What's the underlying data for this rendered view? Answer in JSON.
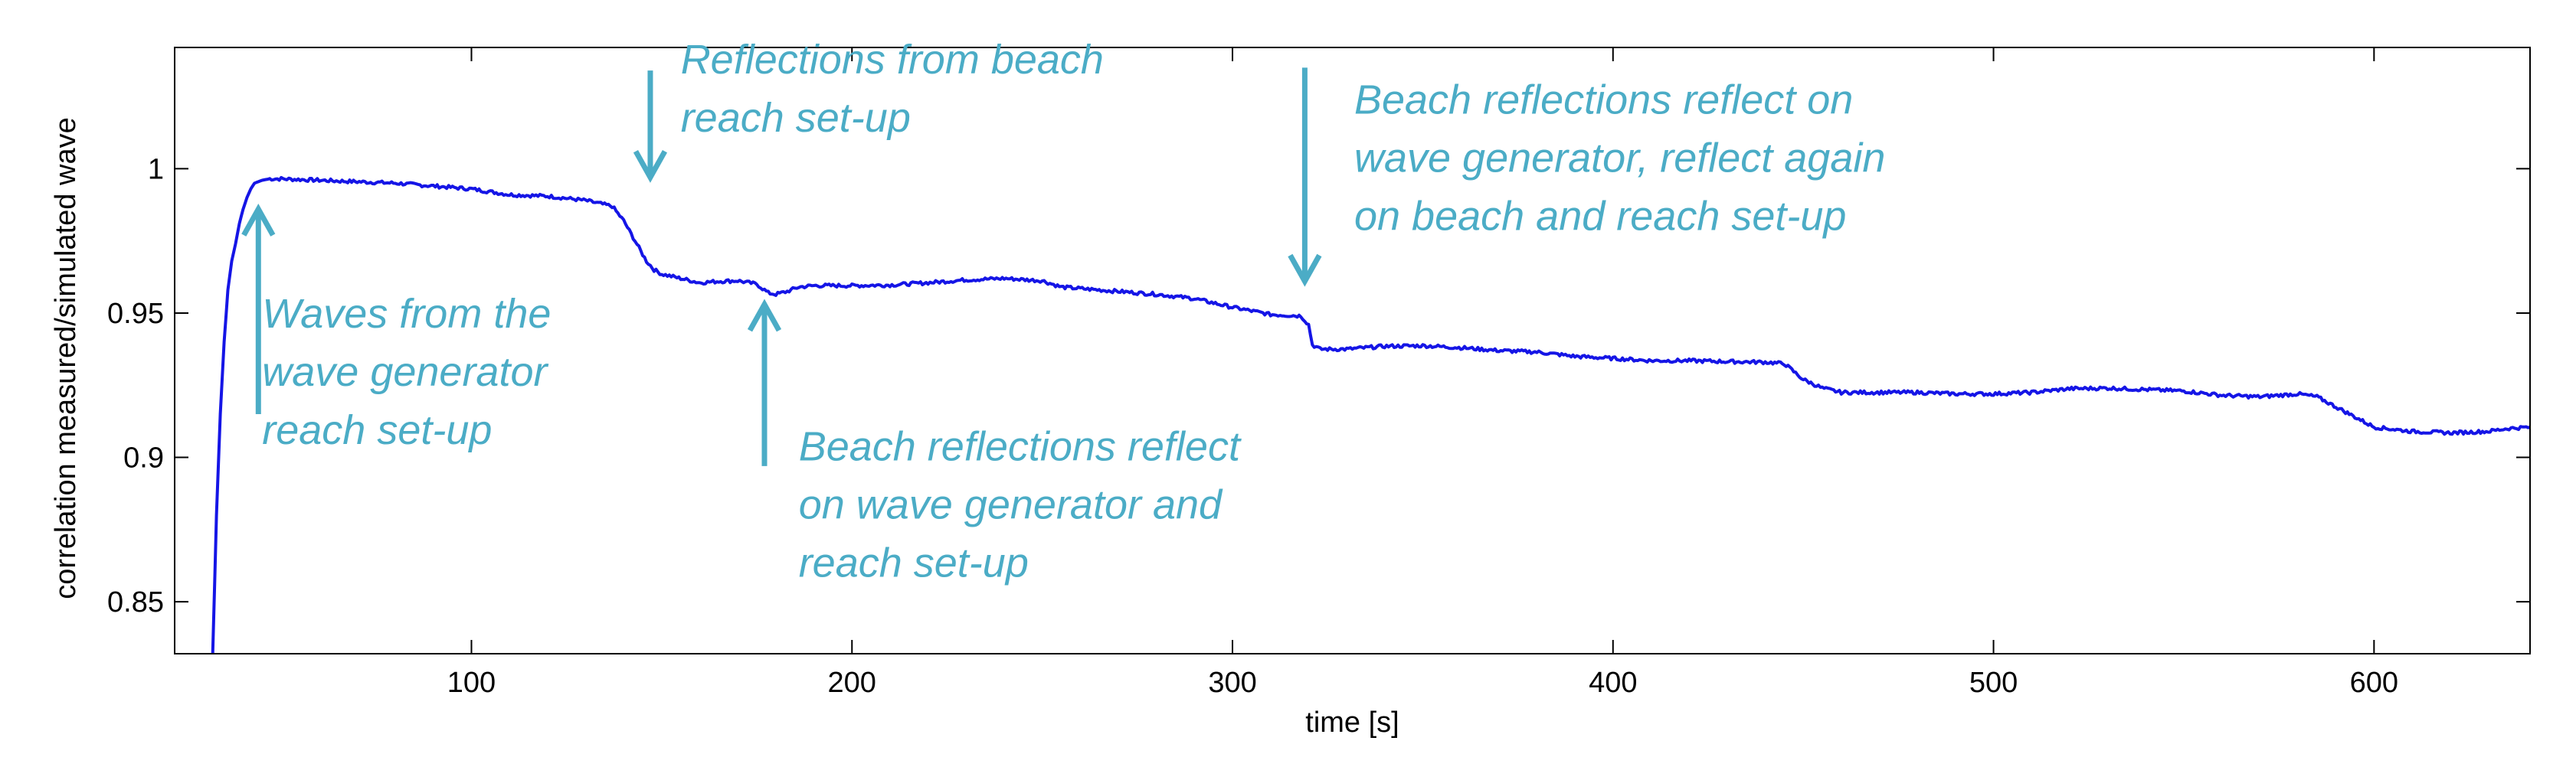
{
  "chart_data": {
    "type": "line",
    "title": "",
    "xlabel": "time [s]",
    "ylabel": "correlation measured/simulated wave",
    "xlim": [
      22,
      641
    ],
    "ylim": [
      0.832,
      1.042
    ],
    "xticks": [
      100,
      200,
      300,
      400,
      500,
      600
    ],
    "xtick_labels": [
      "100",
      "200",
      "300",
      "400",
      "500",
      "600"
    ],
    "yticks": [
      0.85,
      0.9,
      0.95,
      1.0
    ],
    "ytick_labels": [
      "0.85",
      "0.9",
      "0.95",
      "1"
    ],
    "grid": false,
    "series": [
      {
        "name": "correlation",
        "color": "#1515e6",
        "x": [
          32,
          33,
          34,
          35,
          36,
          37,
          38,
          39,
          40,
          41,
          42,
          43,
          44,
          45,
          47,
          50,
          60,
          70,
          80,
          90,
          100,
          110,
          120,
          130,
          137,
          140,
          143,
          146,
          148,
          150,
          155,
          160,
          165,
          170,
          175,
          178,
          180,
          183,
          186,
          190,
          200,
          210,
          220,
          230,
          240,
          250,
          255,
          260,
          270,
          280,
          290,
          300,
          310,
          318,
          320,
          321,
          323,
          330,
          340,
          350,
          360,
          370,
          380,
          390,
          400,
          410,
          420,
          430,
          440,
          445,
          450,
          455,
          460,
          470,
          480,
          490,
          500,
          510,
          520,
          530,
          540,
          550,
          560,
          570,
          580,
          585,
          590,
          595,
          600,
          610,
          620,
          630,
          635,
          641
        ],
        "y": [
          0.832,
          0.88,
          0.915,
          0.94,
          0.958,
          0.968,
          0.974,
          0.981,
          0.986,
          0.99,
          0.993,
          0.995,
          0.9955,
          0.996,
          0.9965,
          0.9965,
          0.996,
          0.9955,
          0.995,
          0.994,
          0.993,
          0.991,
          0.9905,
          0.989,
          0.987,
          0.982,
          0.975,
          0.968,
          0.965,
          0.9635,
          0.962,
          0.9605,
          0.961,
          0.9612,
          0.96,
          0.957,
          0.9565,
          0.9575,
          0.959,
          0.9595,
          0.9595,
          0.9597,
          0.9605,
          0.9615,
          0.962,
          0.9612,
          0.959,
          0.9585,
          0.9575,
          0.9565,
          0.955,
          0.952,
          0.9495,
          0.949,
          0.946,
          0.939,
          0.9375,
          0.9375,
          0.9385,
          0.9387,
          0.938,
          0.937,
          0.9365,
          0.935,
          0.9343,
          0.9335,
          0.9335,
          0.9332,
          0.933,
          0.9325,
          0.927,
          0.924,
          0.9225,
          0.9225,
          0.9225,
          0.922,
          0.922,
          0.9225,
          0.9238,
          0.924,
          0.9235,
          0.923,
          0.9215,
          0.921,
          0.922,
          0.921,
          0.9175,
          0.914,
          0.9105,
          0.909,
          0.9085,
          0.909,
          0.91,
          0.9105
        ]
      }
    ],
    "annotations": [
      {
        "lines": [
          "Waves from the",
          "wave generator",
          "reach set-up"
        ],
        "arrow_x": 44,
        "arrow_tail_y": 0.915,
        "arrow_head_y": 0.986,
        "text_x": 45,
        "text_y": 0.945
      },
      {
        "lines": [
          "Reflections from beach",
          "reach set-up"
        ],
        "arrow_x": 147,
        "arrow_tail_y": 1.034,
        "arrow_head_y": 0.997,
        "text_x": 155,
        "text_y": 1.033
      },
      {
        "lines": [
          "Beach reflections reflect",
          "on wave generator and",
          "reach set-up"
        ],
        "arrow_x": 177,
        "arrow_tail_y": 0.897,
        "arrow_head_y": 0.953,
        "text_x": 186,
        "text_y": 0.899
      },
      {
        "lines": [
          "Beach reflections reflect on",
          "wave generator, reflect again",
          "on beach and reach set-up"
        ],
        "arrow_x": 319,
        "arrow_tail_y": 1.035,
        "arrow_head_y": 0.961,
        "text_x": 332,
        "text_y": 1.019
      }
    ],
    "annotation_color": "#4bacc6"
  }
}
